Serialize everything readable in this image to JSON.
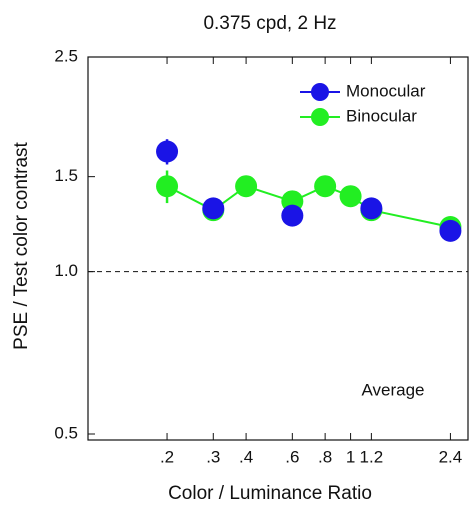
{
  "chart_data": {
    "type": "scatter",
    "title": "0.375 cpd, 2 Hz",
    "x_label": "Color / Luminance Ratio",
    "y_label": "PSE / Test color contrast",
    "annotation": "Average",
    "x_scale": "log",
    "y_scale": "log",
    "xlim": [
      0.1,
      2.8
    ],
    "ylim": [
      0.5,
      2.5
    ],
    "xticks": [
      {
        "value": 0.2,
        "label": ".2"
      },
      {
        "value": 0.3,
        "label": ".3"
      },
      {
        "value": 0.4,
        "label": ".4"
      },
      {
        "value": 0.6,
        "label": ".6"
      },
      {
        "value": 0.8,
        "label": ".8"
      },
      1,
      1.2,
      2.4
    ],
    "yticks": [
      0.5,
      {
        "value": 1,
        "label": "1.0"
      },
      1.5,
      2.5
    ],
    "reference_line": 1,
    "legend": "top-right",
    "series": [
      {
        "name": "Binocular",
        "color": "#22ee22",
        "connected": true,
        "x": [
          0.2,
          0.3,
          0.4,
          0.6,
          0.8,
          1,
          1.2,
          2.4
        ],
        "values": [
          1.44,
          1.3,
          1.44,
          1.35,
          1.44,
          1.38,
          1.3,
          1.21
        ],
        "errors": [
          0.1,
          0.03,
          0.06,
          0.04,
          0.06,
          0.03,
          0.03,
          0.03
        ]
      },
      {
        "name": "Monocular",
        "color": "#1a14e6",
        "connected": false,
        "x": [
          0.2,
          0.3,
          0.6,
          1.2,
          2.4
        ],
        "values": [
          1.67,
          1.31,
          1.27,
          1.31,
          1.19
        ],
        "errors": [
          0.09,
          0.03,
          0.05,
          0.03,
          0.03
        ]
      }
    ]
  }
}
